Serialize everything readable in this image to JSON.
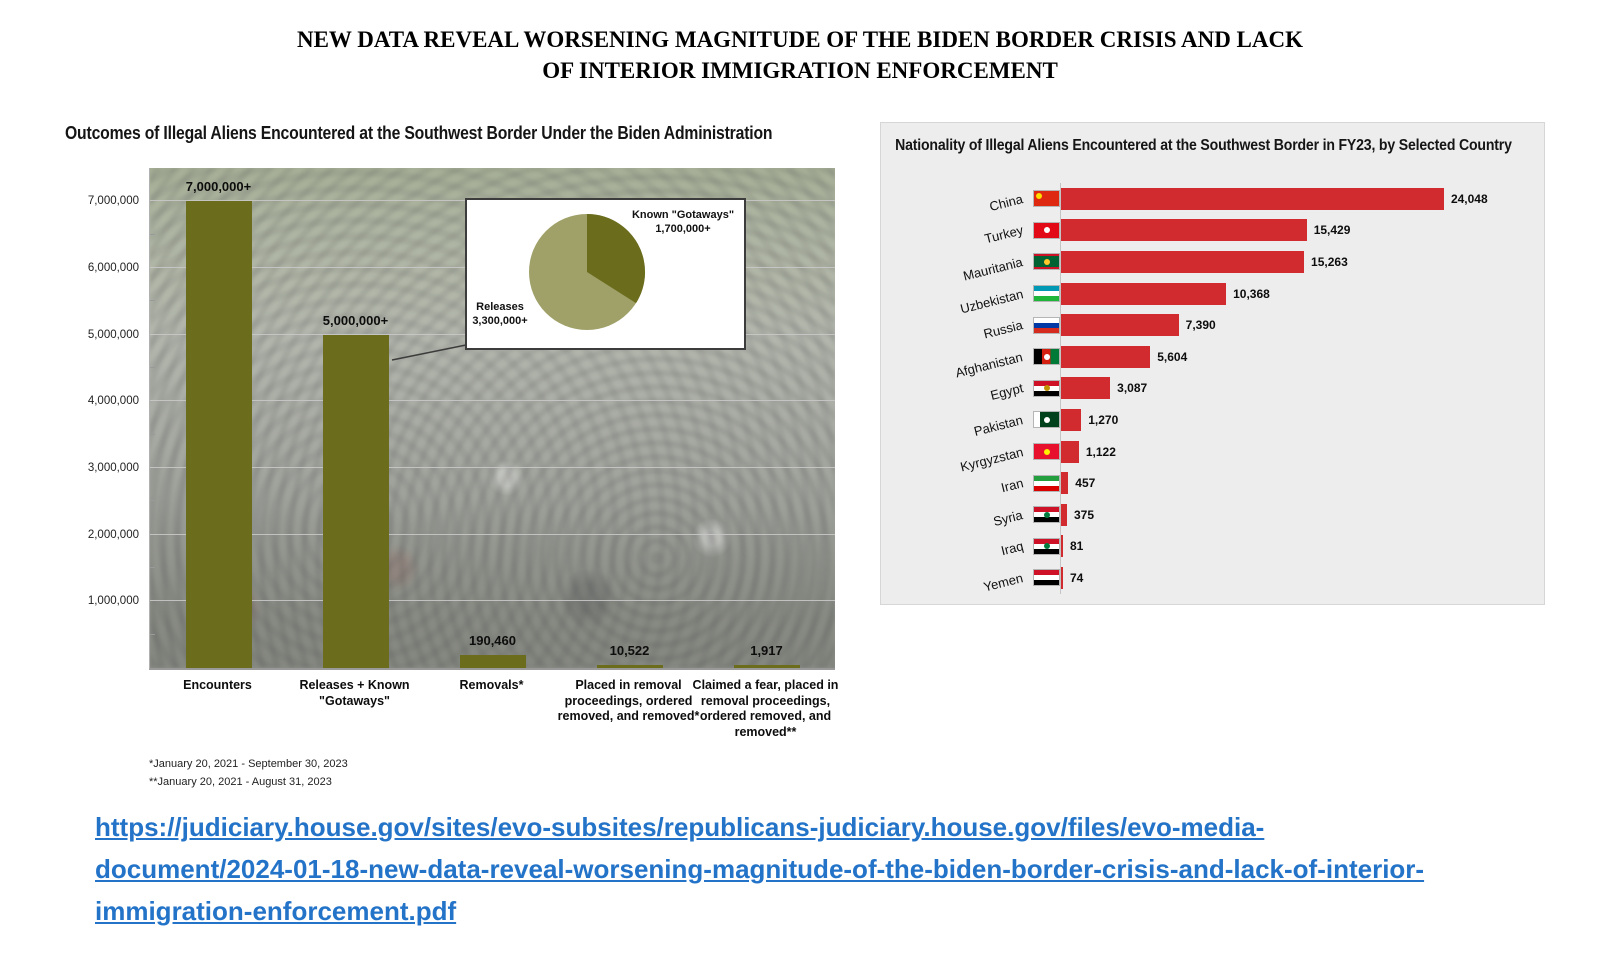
{
  "page": {
    "title": "NEW DATA REVEAL WORSENING MAGNITUDE OF THE BIDEN BORDER CRISIS AND LACK OF INTERIOR IMMIGRATION ENFORCEMENT",
    "link_text": "https://judiciary.house.gov/sites/evo-subsites/republicans-judiciary.house.gov/files/evo-media-document/2024-01-18-new-data-reveal-worsening-magnitude-of-the-biden-border-crisis-and-lack-of-interior-immigration-enforcement.pdf"
  },
  "chart_data": [
    {
      "type": "bar",
      "title": "Outcomes of Illegal Aliens Encountered at the Southwest Border Under the Biden Administration",
      "categories": [
        "Encounters",
        "Releases + Known \"Gotaways\"",
        "Removals*",
        "Placed in removal proceedings, ordered removed, and removed*",
        "Claimed a fear, placed in removal proceedings, ordered removed, and removed**"
      ],
      "values": [
        7000000,
        5000000,
        190460,
        10522,
        1917
      ],
      "value_labels": [
        "7,000,000+",
        "5,000,000+",
        "190,460",
        "10,522",
        "1,917"
      ],
      "ylim": [
        0,
        7500000
      ],
      "yticks": [
        1000000,
        2000000,
        3000000,
        4000000,
        5000000,
        6000000,
        7000000
      ],
      "ytick_labels": [
        "1,000,000",
        "2,000,000",
        "3,000,000",
        "4,000,000",
        "5,000,000",
        "6,000,000",
        "7,000,000"
      ],
      "bar_color": "#6b6d1d",
      "grid": true,
      "inset_pie": {
        "slices": [
          {
            "label": "Known \"Gotaways\"",
            "value": 1700000,
            "value_label": "1,700,000+",
            "color": "#6b6d1d"
          },
          {
            "label": "Releases",
            "value": 3300000,
            "value_label": "3,300,000+",
            "color": "#a0a169"
          }
        ]
      },
      "footnotes": [
        "*January 20, 2021 - September 30, 2023",
        "**January 20, 2021 - August 31, 2023"
      ]
    },
    {
      "type": "bar",
      "orientation": "horizontal",
      "title": "Nationality of Illegal Aliens Encountered at the Southwest Border in FY23, by Selected Country",
      "categories": [
        "China",
        "Turkey",
        "Mauritania",
        "Uzbekistan",
        "Russia",
        "Afghanistan",
        "Egypt",
        "Pakistan",
        "Kyrgyzstan",
        "Iran",
        "Syria",
        "Iraq",
        "Yemen"
      ],
      "values": [
        24048,
        15429,
        15263,
        10368,
        7390,
        5604,
        3087,
        1270,
        1122,
        457,
        375,
        81,
        74
      ],
      "value_labels": [
        "24,048",
        "15,429",
        "15,263",
        "10,368",
        "7,390",
        "5,604",
        "3,087",
        "1,270",
        "1,122",
        "457",
        "375",
        "81",
        "74"
      ],
      "flags": [
        "flag-china",
        "flag-turkey",
        "flag-mauritania",
        "flag-uzbekistan",
        "flag-russia",
        "flag-afghanistan",
        "flag-egypt",
        "flag-pakistan",
        "flag-kyrgyzstan",
        "flag-iran",
        "flag-syria",
        "flag-iraq",
        "flag-yemen"
      ],
      "bar_color": "#d22b2f",
      "legend": "none",
      "grid": false
    }
  ]
}
